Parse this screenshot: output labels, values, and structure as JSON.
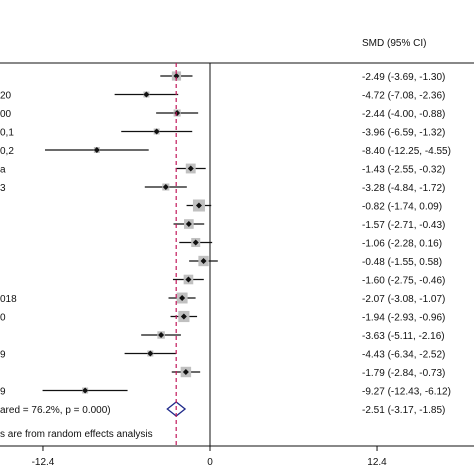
{
  "chart_data": {
    "type": "forest",
    "header": {
      "ci_column": "SMD (95% CI)"
    },
    "xaxis": {
      "ticks": [
        -12.4,
        0,
        12.4
      ],
      "tick_labels": [
        "-12.4",
        "0",
        "12.4"
      ]
    },
    "null_line": 0,
    "studies": [
      {
        "label": "",
        "smd": -2.49,
        "lower": -3.69,
        "upper": -1.3,
        "ci_text": "-2.49 (-3.69, -1.30)"
      },
      {
        "label": "20",
        "smd": -4.72,
        "lower": -7.08,
        "upper": -2.36,
        "ci_text": "-4.72 (-7.08, -2.36)"
      },
      {
        "label": "00",
        "smd": -2.44,
        "lower": -4.0,
        "upper": -0.88,
        "ci_text": "-2.44 (-4.00, -0.88)"
      },
      {
        "label": "0,1",
        "smd": -3.96,
        "lower": -6.59,
        "upper": -1.32,
        "ci_text": "-3.96 (-6.59, -1.32)"
      },
      {
        "label": "0,2",
        "smd": -8.4,
        "lower": -12.25,
        "upper": -4.55,
        "ci_text": "-8.40 (-12.25, -4.55)"
      },
      {
        "label": "a",
        "smd": -1.43,
        "lower": -2.55,
        "upper": -0.32,
        "ci_text": "-1.43 (-2.55, -0.32)"
      },
      {
        "label": "3",
        "smd": -3.28,
        "lower": -4.84,
        "upper": -1.72,
        "ci_text": "-3.28 (-4.84, -1.72)"
      },
      {
        "label": "",
        "smd": -0.82,
        "lower": -1.74,
        "upper": 0.09,
        "ci_text": "-0.82 (-1.74, 0.09)"
      },
      {
        "label": "",
        "smd": -1.57,
        "lower": -2.71,
        "upper": -0.43,
        "ci_text": "-1.57 (-2.71, -0.43)"
      },
      {
        "label": "",
        "smd": -1.06,
        "lower": -2.28,
        "upper": 0.16,
        "ci_text": "-1.06 (-2.28, 0.16)"
      },
      {
        "label": "",
        "smd": -0.48,
        "lower": -1.55,
        "upper": 0.58,
        "ci_text": "-0.48 (-1.55, 0.58)"
      },
      {
        "label": "",
        "smd": -1.6,
        "lower": -2.75,
        "upper": -0.46,
        "ci_text": "-1.60 (-2.75, -0.46)"
      },
      {
        "label": "018",
        "smd": -2.07,
        "lower": -3.08,
        "upper": -1.07,
        "ci_text": "-2.07 (-3.08, -1.07)"
      },
      {
        "label": "0",
        "smd": -1.94,
        "lower": -2.93,
        "upper": -0.96,
        "ci_text": "-1.94 (-2.93, -0.96)"
      },
      {
        "label": "",
        "smd": -3.63,
        "lower": -5.11,
        "upper": -2.16,
        "ci_text": "-3.63 (-5.11, -2.16)"
      },
      {
        "label": "9",
        "smd": -4.43,
        "lower": -6.34,
        "upper": -2.52,
        "ci_text": "-4.43 (-6.34, -2.52)"
      },
      {
        "label": "",
        "smd": -1.79,
        "lower": -2.84,
        "upper": -0.73,
        "ci_text": "-1.79 (-2.84, -0.73)"
      },
      {
        "label": "9",
        "smd": -9.27,
        "lower": -12.43,
        "upper": -6.12,
        "ci_text": "-9.27 (-12.43, -6.12)"
      }
    ],
    "overall": {
      "label": "ared = 76.2%, p = 0.000)",
      "smd": -2.51,
      "lower": -3.17,
      "upper": -1.85,
      "ci_text": "-2.51 (-3.17, -1.85)"
    },
    "footnote": "s are from random effects analysis",
    "colors": {
      "box": "#c0c0c0",
      "marker": "#111111",
      "ci_line": "#111111",
      "overall_diamond": "#1f2a8a",
      "overall_line": "#c2185b"
    }
  }
}
